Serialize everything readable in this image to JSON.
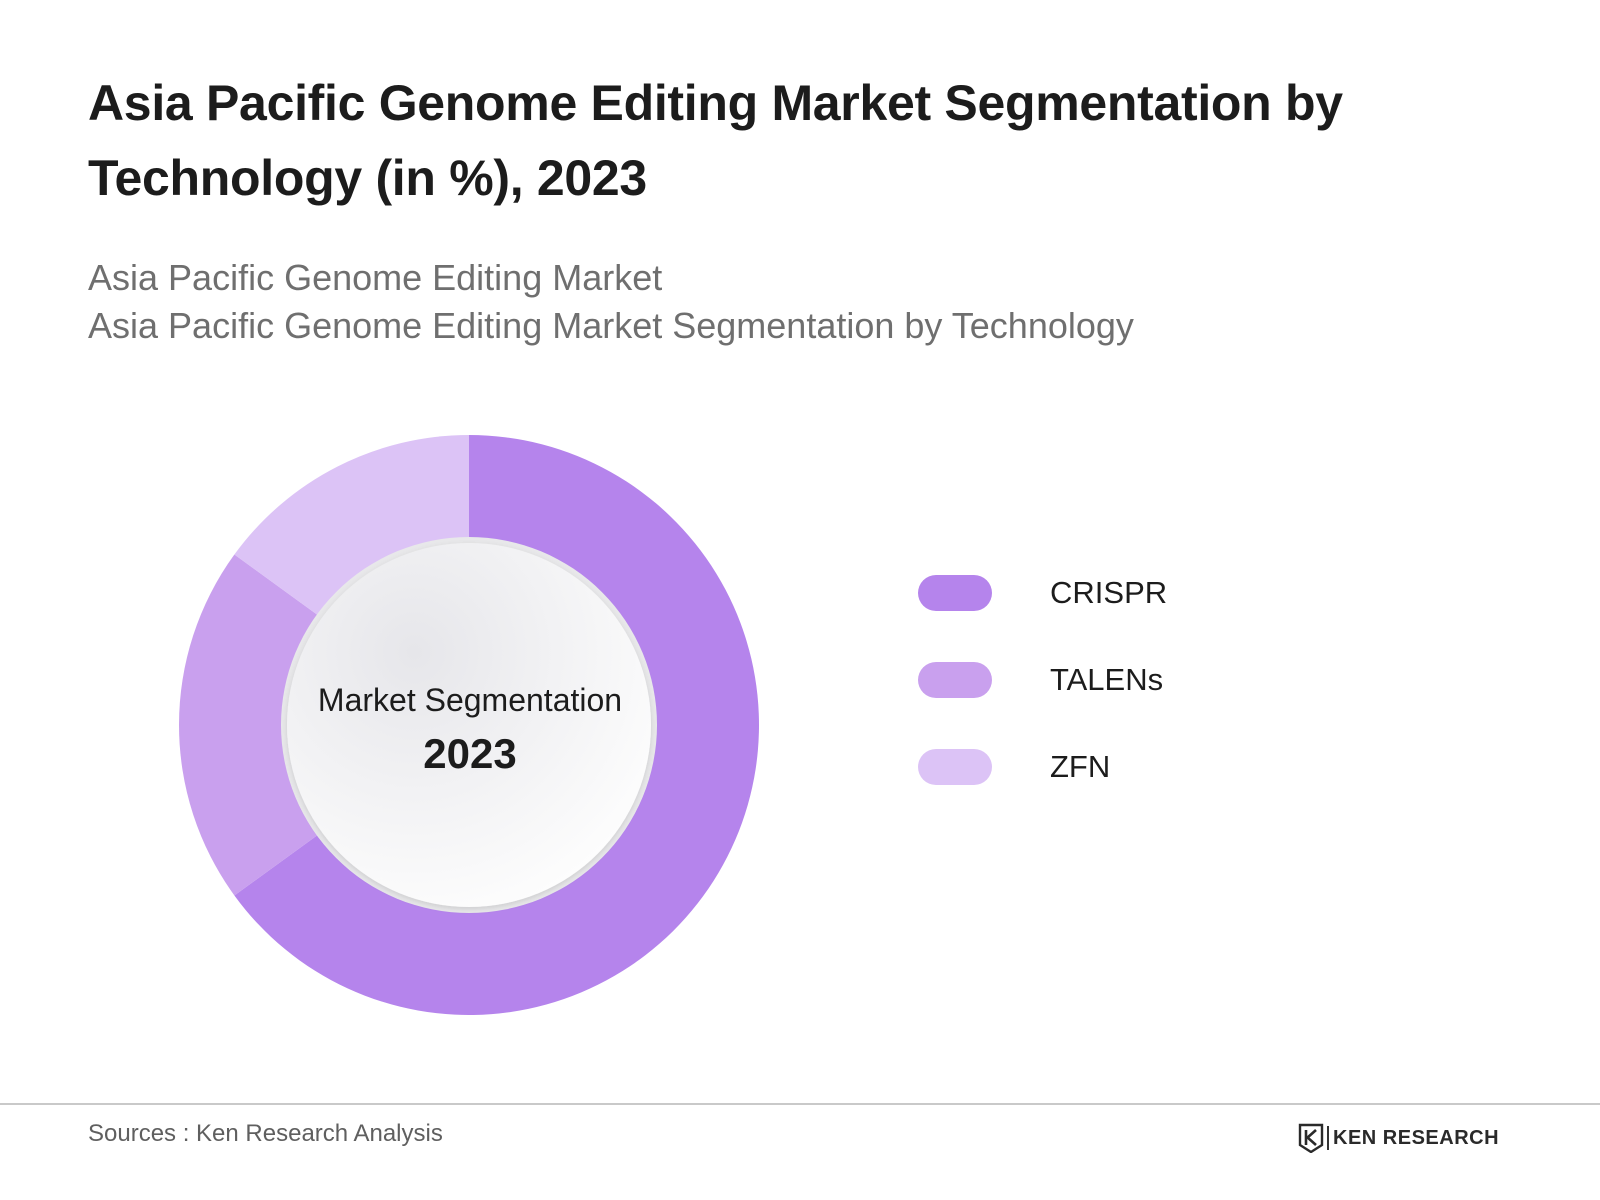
{
  "title": "Asia Pacific Genome Editing Market Segmentation by Technology (in %), 2023",
  "subtitle": {
    "line1": "Asia Pacific Genome Editing Market",
    "line2": "Asia Pacific Genome Editing Market Segmentation by Technology"
  },
  "chart_data": {
    "type": "pie",
    "variant": "donut",
    "center_label": {
      "line1": "Market Segmentation",
      "line2": "2023"
    },
    "categories": [
      "CRISPR",
      "TALENs",
      "ZFN"
    ],
    "values": [
      65,
      20,
      15
    ],
    "colors": [
      "#b584ec",
      "#c9a0ee",
      "#dcc3f6"
    ],
    "legend_position": "right",
    "start_angle": "top, clockwise"
  },
  "footer": {
    "source": "Sources : Ken Research Analysis",
    "brand": "KEN RESEARCH",
    "brand_icon": "ken-research-logo-icon"
  }
}
